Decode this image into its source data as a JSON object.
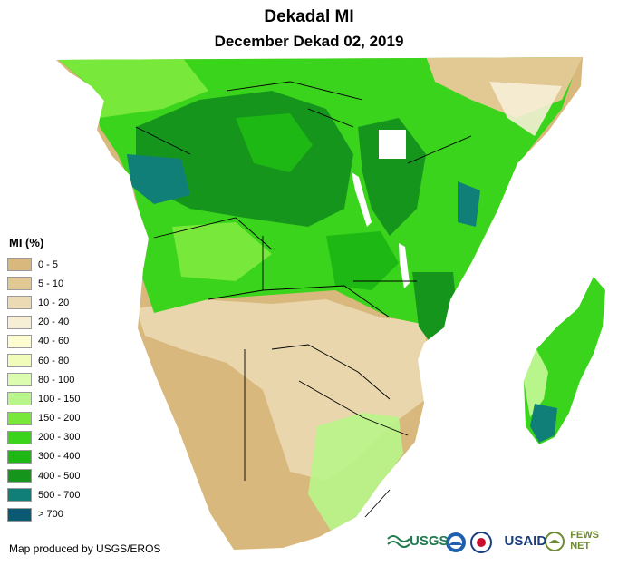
{
  "header": {
    "title": "Dekadal MI",
    "subtitle": "December Dekad 02, 2019"
  },
  "legend": {
    "title": "MI (%)",
    "classes": [
      {
        "label": "0 - 5",
        "color": "#d8b87c"
      },
      {
        "label": "5 - 10",
        "color": "#e2c994"
      },
      {
        "label": "10 - 20",
        "color": "#ecdab5"
      },
      {
        "label": "20 - 40",
        "color": "#f7eed6"
      },
      {
        "label": "40 - 60",
        "color": "#fdfdd0"
      },
      {
        "label": "60 - 80",
        "color": "#f1fcba"
      },
      {
        "label": "80 - 100",
        "color": "#dcfcb0"
      },
      {
        "label": "100 - 150",
        "color": "#b8f58a"
      },
      {
        "label": "150 - 200",
        "color": "#78e83a"
      },
      {
        "label": "200 - 300",
        "color": "#39d41b"
      },
      {
        "label": "300 - 400",
        "color": "#1db814"
      },
      {
        "label": "400 - 500",
        "color": "#16951d"
      },
      {
        "label": "500 - 700",
        "color": "#0f7f77"
      },
      {
        "label": "> 700",
        "color": "#0a5a74"
      }
    ]
  },
  "footer": {
    "credit": "Map produced by USGS/EROS"
  },
  "logos": {
    "usgs": "USGS",
    "usaid": "USAID",
    "fewsnet": "FEWS NET",
    "icons": [
      "usgs-logo-icon",
      "noaa-logo-icon",
      "usaid-seal-icon",
      "fewsnet-logo-icon"
    ]
  }
}
